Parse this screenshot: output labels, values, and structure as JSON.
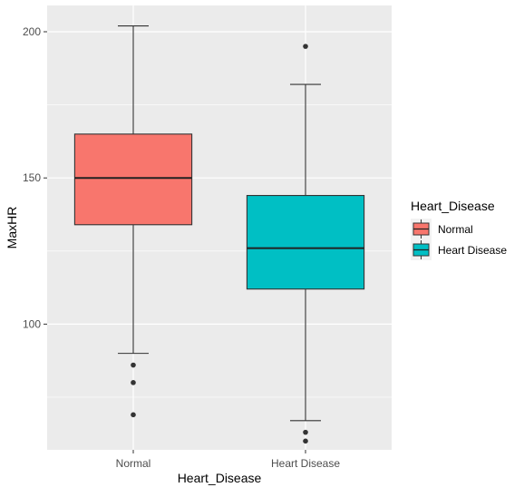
{
  "chart_data": {
    "type": "boxplot",
    "categories": [
      "Normal",
      "Heart Disease"
    ],
    "xlabel": "Heart_Disease",
    "ylabel": "MaxHR",
    "ylim": [
      57,
      209
    ],
    "y_ticks": [
      100,
      150,
      200
    ],
    "grid": true,
    "legend": {
      "title": "Heart_Disease",
      "position": "right",
      "entries": [
        "Normal",
        "Heart Disease"
      ]
    },
    "series": [
      {
        "name": "Normal",
        "color": "#F8766D",
        "lower_whisker": 90,
        "q1": 134,
        "median": 150,
        "q3": 165,
        "upper_whisker": 202,
        "outliers": [
          86,
          80,
          69
        ]
      },
      {
        "name": "Heart Disease",
        "color": "#00BFC4",
        "lower_whisker": 67,
        "q1": 112,
        "median": 126,
        "q3": 144,
        "upper_whisker": 182,
        "outliers": [
          195,
          63,
          60
        ]
      }
    ]
  }
}
